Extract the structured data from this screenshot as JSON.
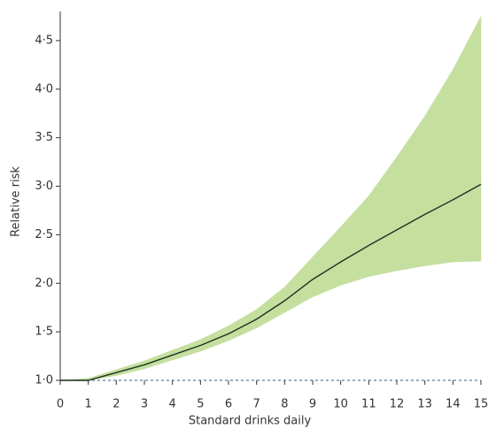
{
  "chart_data": {
    "type": "line",
    "x_label": "Standard drinks daily",
    "y_label": "Relative risk",
    "x": [
      0,
      1,
      2,
      3,
      4,
      5,
      6,
      7,
      8,
      9,
      10,
      11,
      12,
      13,
      14,
      15
    ],
    "values": [
      1.0,
      1.0,
      1.08,
      1.16,
      1.26,
      1.36,
      1.48,
      1.63,
      1.82,
      2.04,
      2.22,
      2.39,
      2.55,
      2.71,
      2.86,
      3.02
    ],
    "ci_lower": [
      1.0,
      1.0,
      1.05,
      1.12,
      1.21,
      1.3,
      1.41,
      1.54,
      1.7,
      1.86,
      1.98,
      2.07,
      2.13,
      2.18,
      2.22,
      2.23
    ],
    "ci_upper": [
      1.0,
      1.02,
      1.11,
      1.2,
      1.31,
      1.42,
      1.56,
      1.73,
      1.96,
      2.27,
      2.58,
      2.9,
      3.3,
      3.72,
      4.2,
      4.75
    ],
    "color": "#1e3320",
    "band_color": "#c5df9f",
    "reference_line": 1,
    "reference_color": "#5b7d99",
    "xlim": [
      0,
      15
    ],
    "xticks": [
      0,
      1,
      2,
      3,
      4,
      5,
      6,
      7,
      8,
      9,
      10,
      11,
      12,
      13,
      14,
      15
    ],
    "ylim": [
      1,
      4.8
    ],
    "yticks": [
      {
        "value": 1,
        "label": "1·0"
      },
      {
        "value": 1.5,
        "label": "1·5"
      },
      {
        "value": 2,
        "label": "2·0"
      },
      {
        "value": 2.5,
        "label": "2·5"
      },
      {
        "value": 3,
        "label": "3·0"
      },
      {
        "value": 3.5,
        "label": "3·5"
      },
      {
        "value": 4,
        "label": "4·0"
      },
      {
        "value": 4.5,
        "label": "4·5"
      }
    ]
  }
}
